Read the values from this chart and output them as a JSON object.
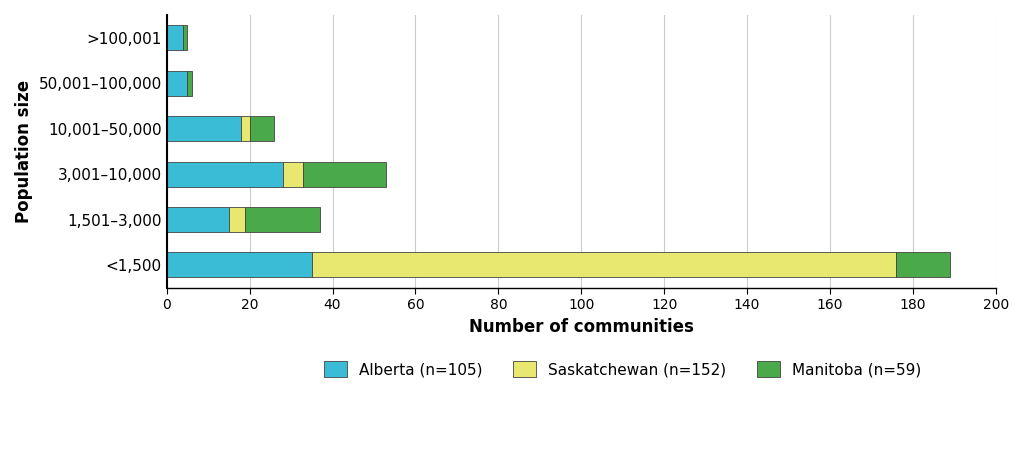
{
  "categories": [
    "<1,500",
    "1,501–3,000",
    "3,001–10,000",
    "10,001–50,000",
    "50,001–100,000",
    ">100,001"
  ],
  "alberta": [
    35,
    15,
    28,
    18,
    5,
    4
  ],
  "saskatchewan": [
    141,
    4,
    5,
    2,
    0,
    0
  ],
  "manitoba": [
    13,
    18,
    20,
    6,
    1,
    1
  ],
  "color_alberta": "#3bbcd6",
  "color_saskatchewan": "#e8e870",
  "color_manitoba": "#4aaa4a",
  "xlabel": "Number of communities",
  "ylabel": "Population size",
  "xlim": [
    0,
    200
  ],
  "xticks": [
    0,
    20,
    40,
    60,
    80,
    100,
    120,
    140,
    160,
    180,
    200
  ],
  "legend_labels": [
    "Alberta (n=105)",
    "Saskatchewan (n=152)",
    "Manitoba (n=59)"
  ],
  "bar_height": 0.55,
  "background_color": "#ffffff",
  "grid_color": "#cccccc",
  "edge_color": "#444444"
}
